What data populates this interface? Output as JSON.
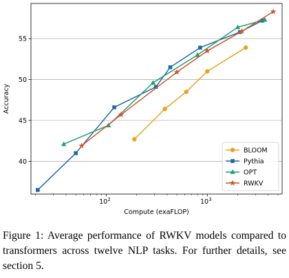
{
  "chart_data": {
    "type": "line",
    "xlabel": "Compute (exaFLOP)",
    "ylabel": "Accuracy",
    "xscale": "log",
    "xlim": [
      18,
      5500
    ],
    "ylim": [
      36,
      59.3
    ],
    "yticks": [
      40,
      45,
      50,
      55
    ],
    "xticks": [
      {
        "value": 100,
        "base": "10",
        "exp": "2"
      },
      {
        "value": 1000,
        "base": "10",
        "exp": "3"
      }
    ],
    "grid": "y",
    "legend": "lower-right",
    "series": [
      {
        "name": "BLOOM",
        "color": "#e8a21d",
        "marker": "circle",
        "points": [
          [
            190,
            42.7
          ],
          [
            380,
            46.4
          ],
          [
            620,
            48.5
          ],
          [
            1000,
            51.0
          ],
          [
            2400,
            53.9
          ]
        ]
      },
      {
        "name": "Pythia",
        "color": "#1f68a8",
        "marker": "square",
        "points": [
          [
            21,
            36.5
          ],
          [
            50,
            41.0
          ],
          [
            120,
            46.6
          ],
          [
            310,
            49.1
          ],
          [
            430,
            51.5
          ],
          [
            850,
            53.9
          ],
          [
            2100,
            55.8
          ],
          [
            3500,
            57.2
          ]
        ]
      },
      {
        "name": "OPT",
        "color": "#1e9e74",
        "marker": "triangle",
        "points": [
          [
            38,
            42.1
          ],
          [
            105,
            44.4
          ],
          [
            290,
            49.6
          ],
          [
            800,
            53.0
          ],
          [
            2000,
            56.4
          ],
          [
            3700,
            57.3
          ]
        ]
      },
      {
        "name": "RWKV",
        "color": "#d1542a",
        "marker": "star",
        "points": [
          [
            57,
            41.9
          ],
          [
            140,
            45.7
          ],
          [
            500,
            50.9
          ],
          [
            1000,
            53.5
          ],
          [
            2200,
            55.9
          ],
          [
            4500,
            58.3
          ]
        ]
      }
    ]
  },
  "caption": {
    "text": "Figure 1: Average performance of RWKV models compared to transformers across twelve NLP tasks. For further details, see section 5."
  }
}
